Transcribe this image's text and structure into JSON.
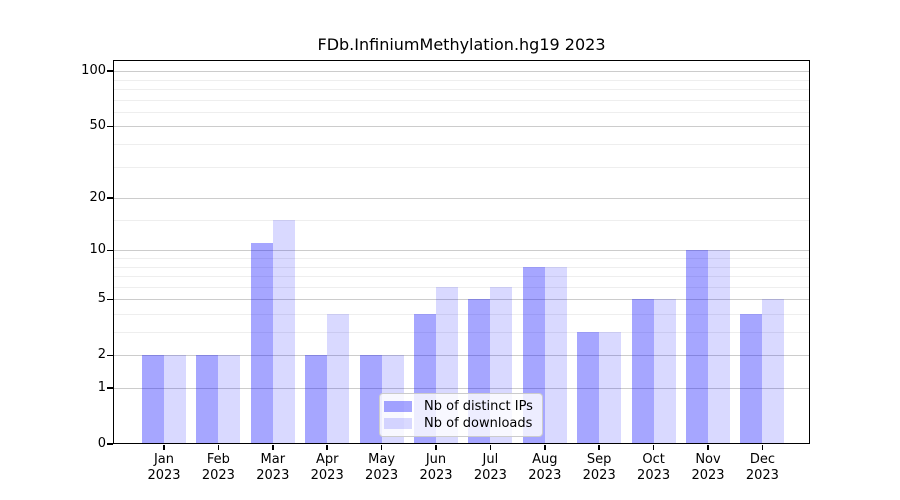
{
  "chart_data": {
    "type": "bar",
    "title": "FDb.InfiniumMethylation.hg19 2023",
    "categories": [
      "Jan 2023",
      "Feb 2023",
      "Mar 2023",
      "Apr 2023",
      "May 2023",
      "Jun 2023",
      "Jul 2023",
      "Aug 2023",
      "Sep 2023",
      "Oct 2023",
      "Nov 2023",
      "Dec 2023"
    ],
    "series": [
      {
        "name": "Nb of distinct IPs",
        "color": "rgba(0,0,255,0.35)",
        "values": [
          2,
          2,
          11,
          2,
          2,
          4,
          5,
          8,
          3,
          5,
          10,
          4
        ]
      },
      {
        "name": "Nb of downloads",
        "color": "rgba(0,0,255,0.15)",
        "values": [
          2,
          2,
          15,
          4,
          2,
          6,
          6,
          8,
          3,
          5,
          10,
          5
        ]
      }
    ],
    "xlabel": "",
    "ylabel": "",
    "yscale": "log1p",
    "ylim": [
      0,
      115
    ],
    "yticks_major": [
      0,
      1,
      2,
      5,
      10,
      20,
      50,
      100
    ],
    "yticks_minor": [
      3,
      4,
      6,
      7,
      8,
      9,
      15,
      30,
      40,
      60,
      70,
      80,
      90
    ],
    "grid": true,
    "legend_position": "bottom-center"
  },
  "colors": {
    "bar_base": "#0000ff",
    "grid_major": "#cccccc",
    "grid_minor": "#eeeeee",
    "frame": "#000000"
  }
}
